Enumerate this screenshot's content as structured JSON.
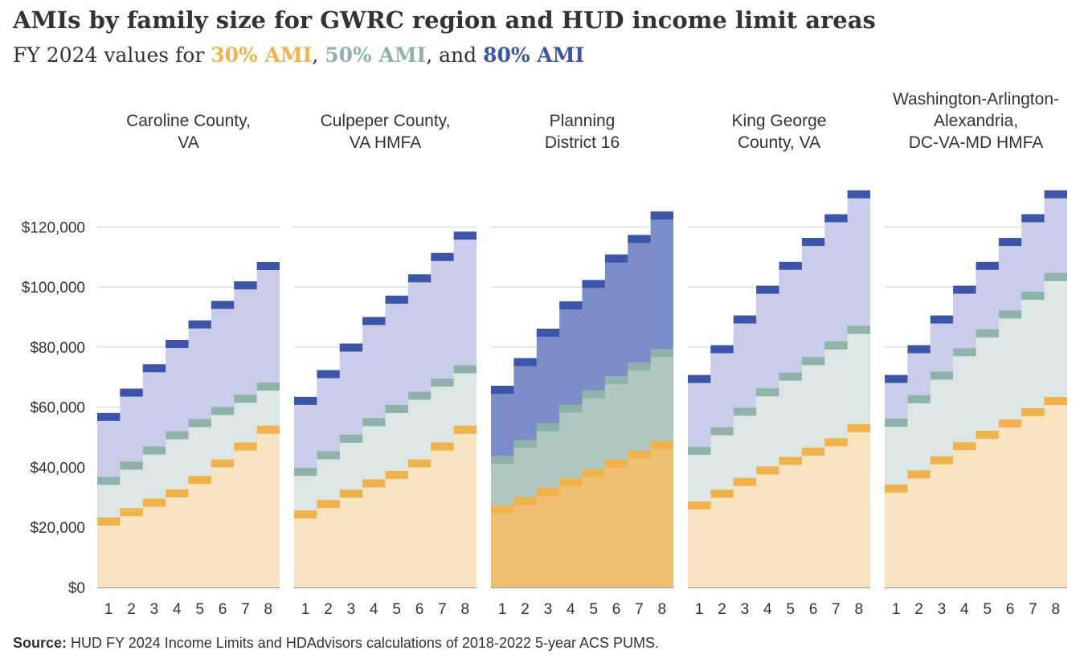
{
  "header": {
    "title": "AMIs by family size for GWRC region and HUD income limit areas",
    "subtitle_prefix": "FY 2024 values for ",
    "key_30": "30% AMI",
    "sep_1": ", ",
    "key_50": "50% AMI",
    "sep_2": ", and ",
    "key_80": "80% AMI"
  },
  "footer": {
    "source_label": "Source:",
    "source_text": " HUD FY 2024 Income Limits and HDAdvisors  calculations of 2018-2022  5-year ACS PUMS."
  },
  "colors": {
    "ami30": "#f0b24a",
    "ami50": "#8fb2ab",
    "ami80": "#3c55a8",
    "ami30_fill": "#f9e4c2",
    "ami50_fill": "#dce6e4",
    "ami80_fill": "#c9cde9",
    "pd16_30_fill": "#efc070",
    "pd16_50_fill": "#aec7c1",
    "pd16_80_fill": "#7b8ec9"
  },
  "chart_data": {
    "type": "area",
    "x": [
      1,
      2,
      3,
      4,
      5,
      6,
      7,
      8
    ],
    "xlabel": "",
    "ylabel": "",
    "ylim": [
      0,
      130000
    ],
    "y_ticks": [
      0,
      20000,
      40000,
      60000,
      80000,
      100000,
      120000
    ],
    "y_tick_labels": [
      "$0",
      "$20,000",
      "$40,000",
      "$60,000",
      "$80,000",
      "$100,000",
      "$120,000"
    ],
    "x_tick_labels": [
      "1",
      "2",
      "3",
      "4",
      "5",
      "6",
      "7",
      "8"
    ],
    "grid": true,
    "panels": [
      {
        "label_lines": [
          "Caroline County,",
          "VA"
        ],
        "highlight": false,
        "series": [
          {
            "name": "30% AMI",
            "values": [
              21950,
              25050,
              28200,
              31300,
              35800,
              41300,
              46900,
              52500
            ]
          },
          {
            "name": "50% AMI",
            "values": [
              35500,
              40550,
              45600,
              50650,
              54700,
              58750,
              62800,
              66850
            ]
          },
          {
            "name": "80% AMI",
            "values": [
              56750,
              64850,
              72950,
              81050,
              87550,
              94050,
              100550,
              107000
            ]
          }
        ]
      },
      {
        "label_lines": [
          "Culpeper County,",
          "VA HMFA"
        ],
        "highlight": false,
        "series": [
          {
            "name": "30% AMI",
            "values": [
              24300,
              27750,
              31200,
              34650,
              37450,
              41300,
              46900,
              52500
            ]
          },
          {
            "name": "50% AMI",
            "values": [
              38500,
              44000,
              49500,
              55000,
              59400,
              63800,
              68200,
              72600
            ]
          },
          {
            "name": "80% AMI",
            "values": [
              62100,
              71000,
              79850,
              88700,
              95800,
              102900,
              110000,
              117100
            ]
          }
        ]
      },
      {
        "label_lines": [
          "Planning",
          "District 16"
        ],
        "highlight": true,
        "series": [
          {
            "name": "30% AMI",
            "values": [
              25900,
              28700,
              31700,
              35000,
              38000,
              41200,
              44200,
              47400
            ]
          },
          {
            "name": "50% AMI",
            "values": [
              42500,
              47800,
              53300,
              59500,
              64300,
              69000,
              73500,
              78000
            ]
          },
          {
            "name": "80% AMI",
            "values": [
              65800,
              75000,
              84800,
              93900,
              101000,
              109500,
              116000,
              123800
            ]
          }
        ]
      },
      {
        "label_lines": [
          "King George",
          "County,  VA"
        ],
        "highlight": false,
        "series": [
          {
            "name": "30% AMI",
            "values": [
              27300,
              31200,
              35100,
              38950,
              42100,
              45200,
              48300,
              53000
            ]
          },
          {
            "name": "50% AMI",
            "values": [
              45500,
              52000,
              58500,
              64950,
              70150,
              75350,
              80550,
              85750
            ]
          },
          {
            "name": "80% AMI",
            "values": [
              69400,
              79300,
              89200,
              99100,
              107050,
              115000,
              122900,
              130850
            ]
          }
        ]
      },
      {
        "label_lines": [
          "Washington-Arlington-",
          "Alexandria,",
          "DC-VA-MD HMFA"
        ],
        "highlight": false,
        "series": [
          {
            "name": "30% AMI",
            "values": [
              32900,
              37600,
              42300,
              47000,
              50800,
              54550,
              58300,
              62050
            ]
          },
          {
            "name": "50% AMI",
            "values": [
              54850,
              62650,
              70500,
              78300,
              84600,
              90850,
              97100,
              103350
            ]
          },
          {
            "name": "80% AMI",
            "values": [
              69400,
              79300,
              89200,
              99100,
              107050,
              115000,
              122900,
              130850
            ]
          }
        ]
      }
    ]
  }
}
